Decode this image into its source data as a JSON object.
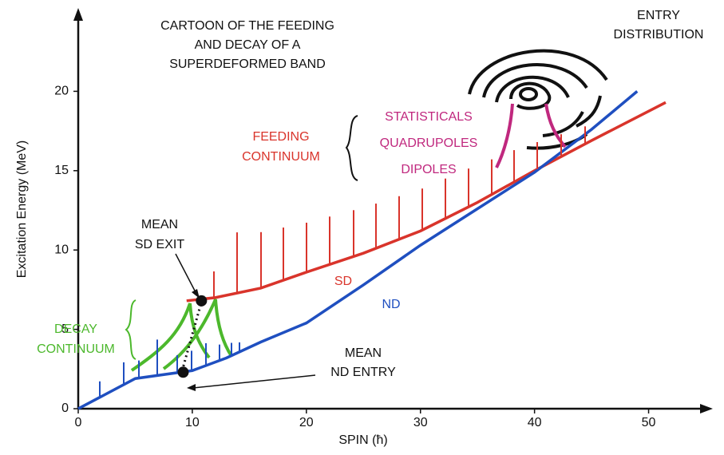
{
  "chart_data": {
    "type": "line",
    "title": [
      "CARTOON OF THE FEEDING",
      "AND DECAY OF A",
      "SUPERDEFORMED BAND"
    ],
    "x_label": "SPIN (ħ)",
    "y_label": "Excitation Energy (MeV)",
    "xlim": [
      0,
      55
    ],
    "ylim": [
      0,
      25
    ],
    "xticks": [
      0,
      10,
      20,
      30,
      40,
      50
    ],
    "yticks": [
      0,
      5,
      10,
      15,
      20
    ],
    "grid": false,
    "series": [
      {
        "name": "SD",
        "color": "#d9342b",
        "x": [
          9.5,
          12,
          16,
          20,
          25,
          30,
          35,
          40,
          45,
          51.5
        ],
        "values": [
          6.8,
          7.0,
          7.6,
          8.6,
          9.8,
          11.2,
          13.0,
          15.0,
          16.9,
          19.3
        ]
      },
      {
        "name": "ND",
        "color": "#1f4fc0",
        "x": [
          0,
          5,
          10,
          13,
          16,
          20,
          25,
          30,
          35,
          40,
          45,
          49
        ],
        "values": [
          0,
          1.9,
          2.4,
          3.2,
          4.2,
          5.4,
          7.8,
          10.3,
          12.6,
          14.9,
          17.6,
          20
        ]
      }
    ],
    "markers": {
      "mean_sd_exit": [
        10.8,
        6.8
      ],
      "mean_nd_entry": [
        9.2,
        2.3
      ]
    },
    "annotations": [
      {
        "lines": [
          "ENTRY",
          "DISTRIBUTION"
        ],
        "color": "#111111"
      },
      {
        "lines": [
          "FEEDING",
          "CONTINUUM"
        ],
        "color": "#d9342b"
      },
      {
        "lines": [
          "STATISTICALS",
          "QUADRUPOLES",
          "DIPOLES"
        ],
        "color": "#c0287e"
      },
      {
        "lines": [
          "MEAN",
          "SD EXIT"
        ],
        "color": "#111111"
      },
      {
        "lines": [
          "DECAY",
          "CONTINUUM"
        ],
        "color": "#4cb82c"
      },
      {
        "lines": [
          "MEAN",
          "ND ENTRY"
        ],
        "color": "#111111"
      }
    ]
  }
}
